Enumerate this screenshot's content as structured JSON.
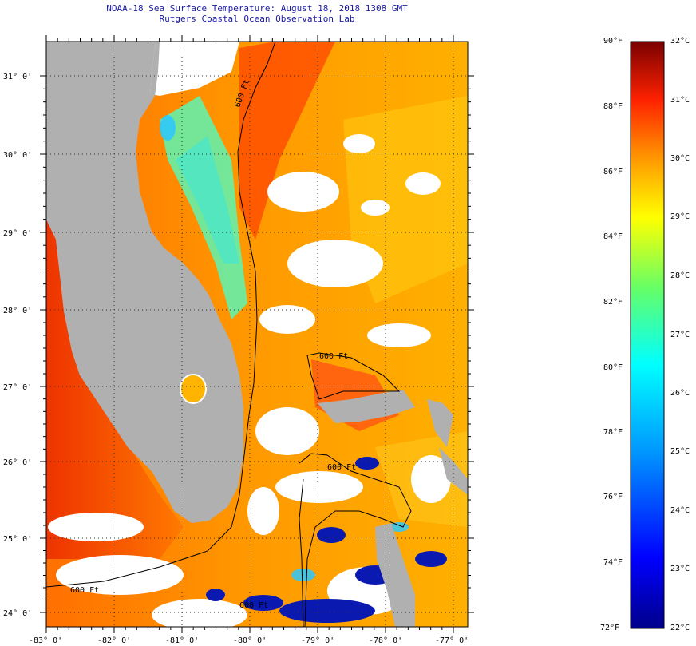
{
  "title": {
    "line1": "NOAA-18 Sea Surface Temperature:  August 18, 2018 1308 GMT",
    "line2": "Rutgers Coastal Ocean Observation Lab"
  },
  "axes": {
    "lat_labels": [
      "31° 0'",
      "30° 0'",
      "29° 0'",
      "28° 0'",
      "27° 0'",
      "26° 0'",
      "25° 0'",
      "24° 0'"
    ],
    "lon_labels": [
      "-83° 0'",
      "-82° 0'",
      "-81° 0'",
      "-80° 0'",
      "-79° 0'",
      "-78° 0'",
      "-77° 0'"
    ]
  },
  "contours": {
    "label_600ft": "600 Ft"
  },
  "colorbar": {
    "fahrenheit": [
      "90°F",
      "88°F",
      "86°F",
      "84°F",
      "82°F",
      "80°F",
      "78°F",
      "76°F",
      "74°F",
      "72°F"
    ],
    "celsius": [
      "32°C",
      "31°C",
      "30°C",
      "29°C",
      "28°C",
      "27°C",
      "26°C",
      "25°C",
      "24°C",
      "23°C",
      "22°C"
    ]
  },
  "colors": {
    "land": "#b0b0b0",
    "warm": "#ff6a00",
    "hot": "#ee2200",
    "cold": "#0000aa",
    "title": "#1a1aa8"
  }
}
